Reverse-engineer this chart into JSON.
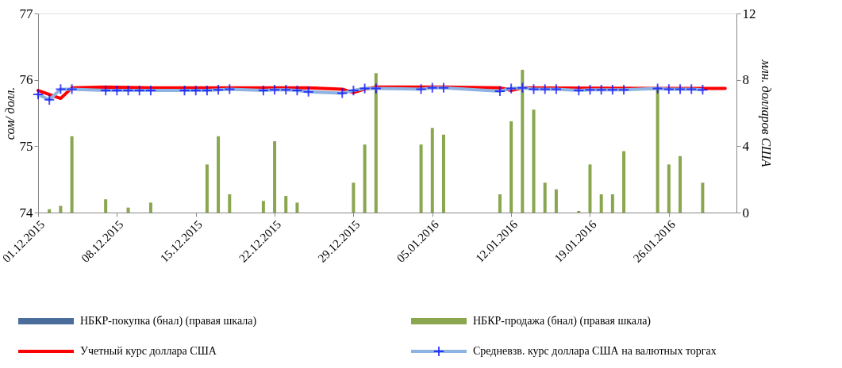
{
  "chart_data": {
    "type": "bar",
    "ylabel": "сом/ долл.",
    "y2label": "млн. долларов США",
    "xlim": [
      "2015-12-01",
      "2016-02-01"
    ],
    "xticks": [
      {
        "value": "2015-12-01",
        "label": "01.12.2015"
      },
      {
        "value": "2015-12-08",
        "label": "08.12.2015"
      },
      {
        "value": "2015-12-15",
        "label": "15.12.2015"
      },
      {
        "value": "2015-12-22",
        "label": "22.12.2015"
      },
      {
        "value": "2015-12-29",
        "label": "29.12.2015"
      },
      {
        "value": "2016-01-05",
        "label": "05.01.2016"
      },
      {
        "value": "2016-01-12",
        "label": "12.01.2016"
      },
      {
        "value": "2016-01-19",
        "label": "19.01.2016"
      },
      {
        "value": "2016-01-26",
        "label": "26.01.2016"
      }
    ],
    "ylim": [
      74,
      77
    ],
    "yticks": [
      74,
      75,
      76,
      77
    ],
    "y2lim": [
      0,
      12
    ],
    "y2ticks": [
      0,
      4,
      8,
      12
    ],
    "grid": false,
    "legend": "bottom",
    "series": [
      {
        "name": "НБКР-покупка (бнал) (правая шкала)",
        "axis": "y2",
        "color": "#4a6d9b"
      },
      {
        "name": "НБКР-продажа (бнал) (правая шкала)",
        "axis": "y2",
        "color": "#8aa64e",
        "x": [
          "2015-12-02",
          "2015-12-03",
          "2015-12-04",
          "2015-12-07",
          "2015-12-09",
          "2015-12-11",
          "2015-12-16",
          "2015-12-17",
          "2015-12-18",
          "2015-12-21",
          "2015-12-22",
          "2015-12-23",
          "2015-12-24",
          "2015-12-29",
          "2015-12-30",
          "2015-12-31",
          "2016-01-04",
          "2016-01-05",
          "2016-01-06",
          "2016-01-11",
          "2016-01-12",
          "2016-01-13",
          "2016-01-14",
          "2016-01-15",
          "2016-01-16",
          "2016-01-18",
          "2016-01-19",
          "2016-01-20",
          "2016-01-21",
          "2016-01-22",
          "2016-01-25",
          "2016-01-26",
          "2016-01-27",
          "2016-01-29"
        ],
        "values": [
          0.2,
          0.4,
          4.6,
          0.8,
          0.3,
          0.6,
          2.9,
          4.6,
          1.1,
          0.7,
          4.3,
          1.0,
          0.6,
          1.8,
          4.1,
          8.4,
          4.1,
          5.1,
          4.7,
          1.1,
          5.5,
          8.6,
          6.2,
          1.8,
          1.4,
          0.1,
          2.9,
          1.1,
          1.1,
          3.7,
          7.5,
          2.9,
          3.4,
          1.8
        ]
      },
      {
        "name": "Учетный курс доллара США",
        "type": "line",
        "marker": "none",
        "color": "#ff0000",
        "x": [
          "2015-12-01",
          "2015-12-02",
          "2015-12-03",
          "2015-12-04",
          "2015-12-07",
          "2015-12-11",
          "2015-12-18",
          "2015-12-25",
          "2015-12-28",
          "2015-12-29",
          "2015-12-30",
          "2015-12-31",
          "2016-01-06",
          "2016-01-11",
          "2016-01-12",
          "2016-01-13",
          "2016-01-25",
          "2016-01-31"
        ],
        "values": [
          75.84,
          75.78,
          75.72,
          75.88,
          75.89,
          75.88,
          75.88,
          75.88,
          75.86,
          75.81,
          75.86,
          75.89,
          75.89,
          75.88,
          75.84,
          75.88,
          75.87,
          75.87
        ]
      },
      {
        "name": "Средневзв. курс доллара США на валютных торгах",
        "type": "line",
        "marker": "cross",
        "color": "#8db3e2",
        "x": [
          "2015-12-01",
          "2015-12-02",
          "2015-12-03",
          "2015-12-04",
          "2015-12-07",
          "2015-12-08",
          "2015-12-09",
          "2015-12-10",
          "2015-12-11",
          "2015-12-14",
          "2015-12-15",
          "2015-12-16",
          "2015-12-17",
          "2015-12-18",
          "2015-12-21",
          "2015-12-22",
          "2015-12-23",
          "2015-12-24",
          "2015-12-25",
          "2015-12-28",
          "2015-12-29",
          "2015-12-30",
          "2015-12-31",
          "2016-01-04",
          "2016-01-05",
          "2016-01-06",
          "2016-01-11",
          "2016-01-12",
          "2016-01-13",
          "2016-01-14",
          "2016-01-15",
          "2016-01-16",
          "2016-01-18",
          "2016-01-19",
          "2016-01-20",
          "2016-01-21",
          "2016-01-22",
          "2016-01-25",
          "2016-01-26",
          "2016-01-27",
          "2016-01-28",
          "2016-01-29"
        ],
        "values": [
          75.78,
          75.7,
          75.86,
          75.86,
          75.84,
          75.84,
          75.84,
          75.84,
          75.84,
          75.84,
          75.84,
          75.84,
          75.85,
          75.86,
          75.84,
          75.85,
          75.85,
          75.84,
          75.82,
          75.8,
          75.84,
          75.87,
          75.87,
          75.86,
          75.88,
          75.88,
          75.83,
          75.87,
          75.88,
          75.86,
          75.86,
          75.86,
          75.84,
          75.85,
          75.85,
          75.85,
          75.85,
          75.87,
          75.86,
          75.86,
          75.86,
          75.85
        ]
      }
    ]
  }
}
